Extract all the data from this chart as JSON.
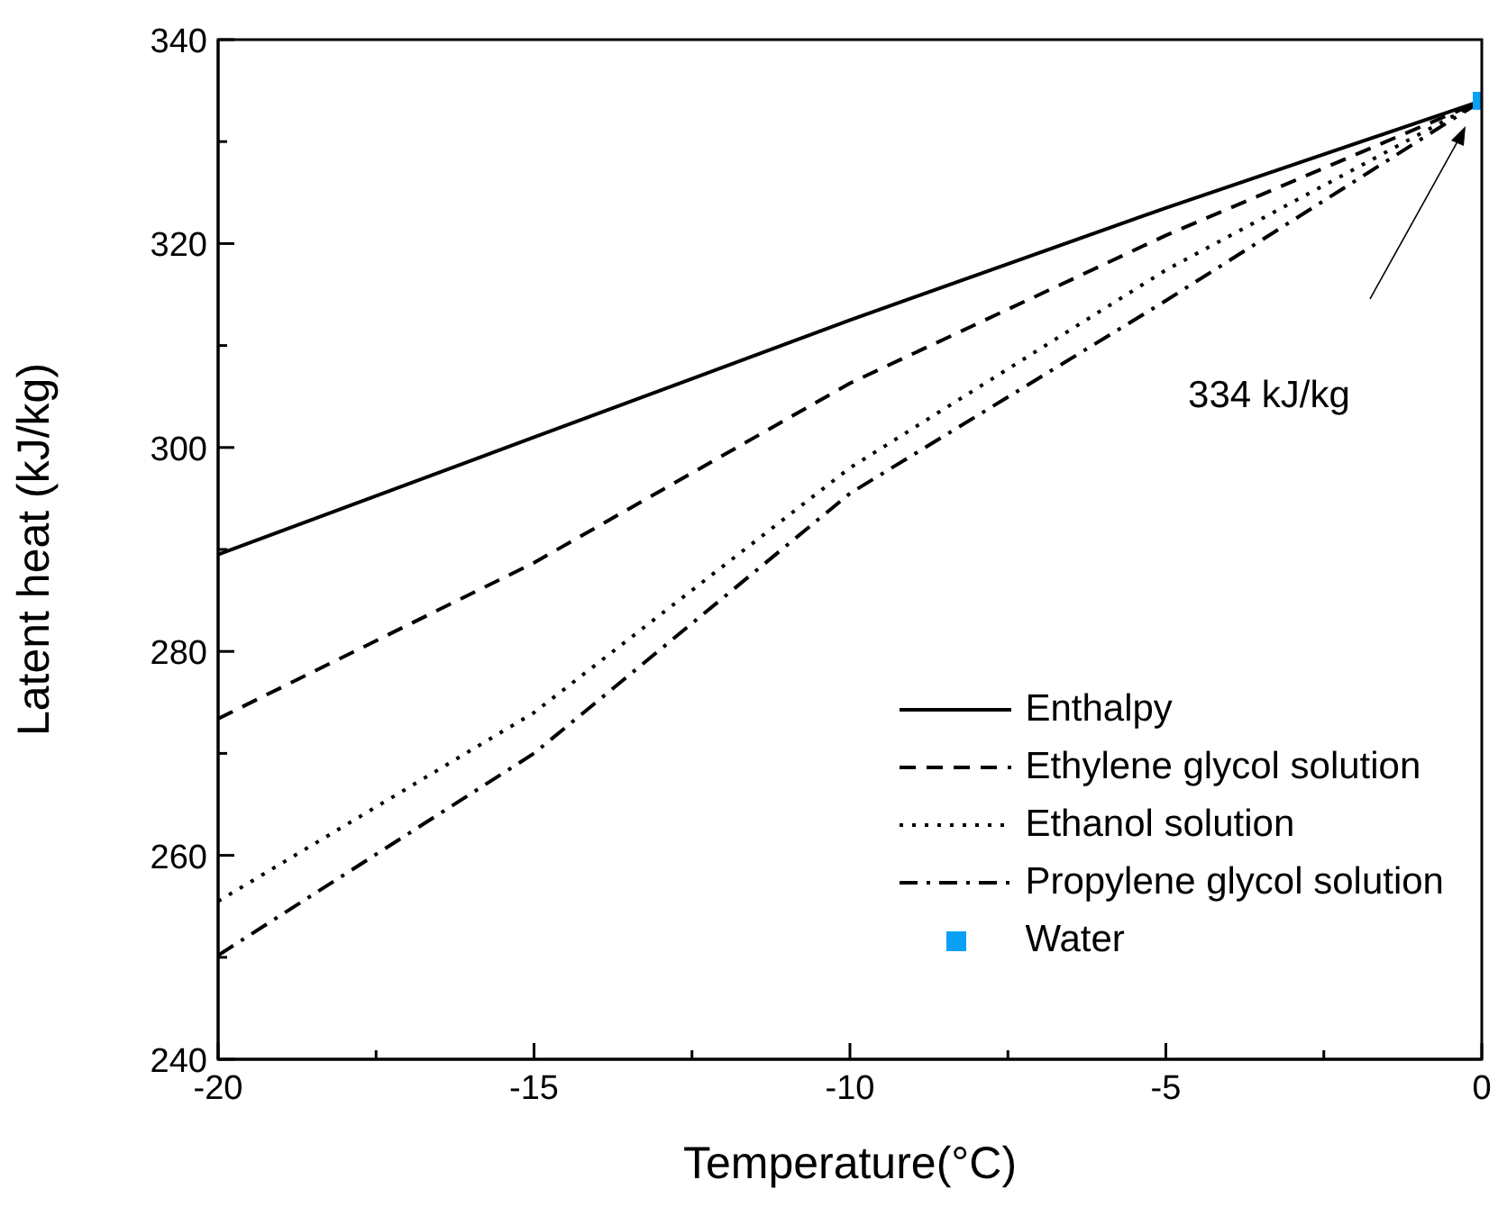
{
  "chart_data": {
    "type": "line",
    "xlabel": "Temperature(°C)",
    "ylabel": "Latent heat (kJ/kg)",
    "xlim": [
      -20,
      0
    ],
    "xticks": [
      -20,
      {
        "value": -17.5,
        "label": null
      },
      -15,
      {
        "value": -12.5,
        "label": null
      },
      -10,
      {
        "value": -7.5,
        "label": null
      },
      -5,
      {
        "value": -2.5,
        "label": null
      },
      0
    ],
    "ylim": [
      240,
      340
    ],
    "yticks": [
      240,
      {
        "value": 250,
        "label": null
      },
      260,
      {
        "value": 270,
        "label": null
      },
      280,
      {
        "value": 290,
        "label": null
      },
      300,
      {
        "value": 310,
        "label": null
      },
      320,
      {
        "value": 330,
        "label": null
      },
      340
    ],
    "grid": false,
    "legend": "bottom right",
    "series": [
      {
        "name": "Enthalpy",
        "type": "line",
        "line_style": "solid",
        "color": "#000000",
        "x": [
          -20,
          -15,
          -10,
          -5,
          0
        ],
        "values": [
          289.5,
          301,
          312.5,
          323.5,
          334
        ]
      },
      {
        "name": "Ethylene glycol solution",
        "type": "line",
        "line_style": "dashed",
        "color": "#000000",
        "x": [
          -20,
          -15,
          -10,
          -5,
          0
        ],
        "values": [
          273.4,
          288.7,
          306.3,
          320.8,
          334
        ]
      },
      {
        "name": "Ethanol solution",
        "type": "line",
        "line_style": "dotted",
        "color": "#000000",
        "x": [
          -20,
          -15,
          -10,
          -5,
          0
        ],
        "values": [
          255.5,
          274,
          298,
          317.4,
          334
        ]
      },
      {
        "name": "Propylene glycol solution",
        "type": "line",
        "line_style": "dashdot",
        "color": "#000000",
        "x": [
          -20,
          -15,
          -10,
          -5,
          0
        ],
        "values": [
          250.2,
          270,
          295.5,
          314.4,
          334
        ]
      },
      {
        "name": "Water",
        "type": "scatter",
        "marker": "square",
        "color": "#0aa0f5",
        "x": [
          0
        ],
        "values": [
          334
        ]
      }
    ],
    "annotations": [
      "334 kJ/kg"
    ]
  }
}
